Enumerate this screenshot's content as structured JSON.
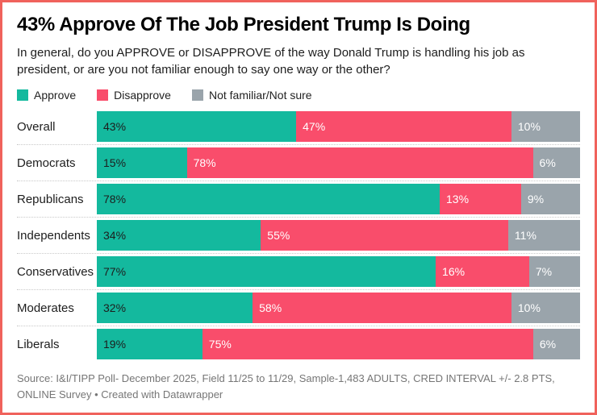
{
  "frame": {
    "border_color": "#f0625c",
    "background": "#ffffff"
  },
  "header": {
    "title": "43% Approve Of The Job President Trump Is Doing",
    "subtitle": "In general, do you APPROVE or DISAPPROVE of the way Donald Trump is handling his job as president, or are you not familiar enough to say one way or the other?"
  },
  "legend": [
    {
      "label": "Approve",
      "color": "#14b99e"
    },
    {
      "label": "Disapprove",
      "color": "#f94d6b"
    },
    {
      "label": "Not familiar/Not sure",
      "color": "#9aa4ab"
    }
  ],
  "chart_data": {
    "type": "bar",
    "variant": "stacked-horizontal-percent",
    "title": "43% Approve Of The Job President Trump Is Doing",
    "unit": "%",
    "categories": [
      "Overall",
      "Democrats",
      "Republicans",
      "Independents",
      "Conservatives",
      "Moderates",
      "Liberals"
    ],
    "series": [
      {
        "name": "Approve",
        "color": "#14b99e",
        "label_color": "#1d1d1d",
        "values": [
          43,
          15,
          78,
          34,
          77,
          32,
          19
        ]
      },
      {
        "name": "Disapprove",
        "color": "#f94d6b",
        "label_color": "#ffffff",
        "values": [
          47,
          78,
          13,
          55,
          16,
          58,
          75
        ]
      },
      {
        "name": "Not familiar/Not sure",
        "color": "#9aa4ab",
        "label_color": "#ffffff",
        "values": [
          10,
          6,
          9,
          11,
          7,
          10,
          6
        ]
      }
    ],
    "value_labels": "inside-start",
    "xlim": [
      0,
      100
    ],
    "grid": false,
    "legend_position": "top",
    "row_separator": "dotted"
  },
  "footer": {
    "text": "Source: I&I/TIPP Poll- December 2025, Field 11/25 to 11/29, Sample-1,483 ADULTS, CRED INTERVAL +/- 2.8 PTS, ONLINE Survey • Created with Datawrapper"
  }
}
